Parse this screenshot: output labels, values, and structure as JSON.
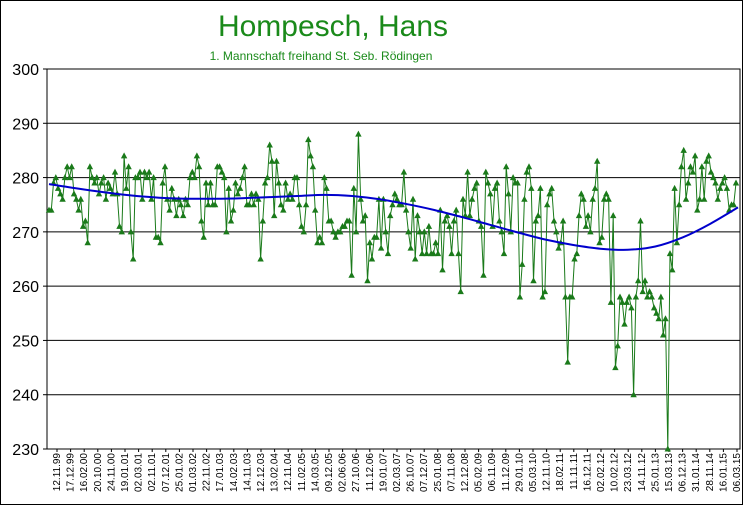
{
  "chart_data": {
    "type": "line",
    "title": "Hompesch, Hans",
    "subtitle": "1. Mannschaft freihand St. Seb. Rödingen",
    "ylim": [
      230,
      300
    ],
    "yticks": [
      230,
      240,
      250,
      260,
      270,
      280,
      290,
      300
    ],
    "grid": "horizontal",
    "legend": "none",
    "colors": {
      "series": "#1a7a1a",
      "trend": "#0000cc",
      "title": "#1a8a1a"
    },
    "xtick_labels": [
      "12.11.99",
      "17.12.99",
      "16.02.00",
      "20.10.00",
      "24.11.00",
      "19.01.01",
      "02.03.01",
      "02.11.01",
      "07.12.01",
      "25.01.02",
      "01.03.02",
      "22.11.02",
      "17.01.03",
      "14.02.03",
      "14.11.03",
      "12.12.03",
      "13.02.04",
      "12.11.04",
      "11.02.05",
      "14.03.05",
      "09.12.05",
      "02.06.06",
      "27.10.06",
      "11.12.06",
      "19.01.07",
      "02.03.07",
      "26.10.07",
      "07.12.07",
      "25.01.08",
      "07.11.08",
      "12.12.08",
      "05.02.09",
      "06.11.09",
      "11.12.09",
      "29.01.10",
      "05.03.10",
      "12.11.10",
      "18.02.11",
      "11.11.11",
      "16.12.11",
      "02.02.12",
      "10.02.12",
      "23.03.12",
      "14.11.12",
      "25.01.13",
      "15.03.13",
      "06.12.13",
      "31.01.14",
      "28.11.14",
      "16.01.15",
      "06.03.15"
    ],
    "series": [
      {
        "type": "line",
        "values": [
          274,
          274,
          279,
          280,
          278,
          277,
          276,
          280,
          282,
          280,
          282,
          277,
          276,
          274,
          276,
          271,
          272,
          268,
          282,
          280,
          279,
          280,
          277,
          279,
          280,
          276,
          279,
          278,
          277,
          281,
          277,
          271,
          270,
          284,
          278,
          282,
          270,
          265,
          280,
          280,
          281,
          276,
          281,
          280,
          281,
          276,
          280,
          269,
          269,
          268,
          279,
          282,
          276,
          274,
          278,
          276,
          273,
          276,
          275,
          273,
          276,
          275,
          280,
          281,
          280,
          284,
          282,
          272,
          269,
          279,
          275,
          279,
          275,
          275,
          282,
          282,
          281,
          280,
          270,
          278,
          272,
          274,
          279,
          277,
          278,
          280,
          282,
          275,
          275,
          277,
          275,
          277,
          276,
          265,
          272,
          279,
          280,
          286,
          283,
          273,
          283,
          279,
          275,
          274,
          279,
          276,
          277,
          276,
          280,
          280,
          275,
          271,
          270,
          275,
          287,
          284,
          282,
          274,
          268,
          269,
          268,
          280,
          278,
          272,
          272,
          270,
          269,
          270,
          270,
          271,
          271,
          272,
          272,
          262,
          278,
          270,
          288,
          276,
          272,
          273,
          261,
          268,
          265,
          269,
          269,
          276,
          267,
          276,
          270,
          266,
          273,
          275,
          277,
          276,
          275,
          275,
          281,
          274,
          270,
          267,
          276,
          265,
          273,
          270,
          266,
          270,
          266,
          271,
          266,
          266,
          268,
          266,
          274,
          263,
          272,
          273,
          271,
          266,
          272,
          274,
          266,
          259,
          276,
          273,
          281,
          273,
          276,
          278,
          279,
          272,
          271,
          262,
          281,
          279,
          277,
          271,
          278,
          279,
          272,
          270,
          266,
          282,
          277,
          270,
          280,
          279,
          279,
          258,
          264,
          276,
          281,
          282,
          278,
          261,
          272,
          273,
          278,
          258,
          259,
          275,
          277,
          278,
          272,
          270,
          267,
          268,
          272,
          258,
          246,
          258,
          258,
          265,
          266,
          273,
          277,
          276,
          271,
          273,
          270,
          276,
          278,
          283,
          268,
          269,
          276,
          277,
          276,
          257,
          273,
          245,
          249,
          258,
          257,
          253,
          257,
          258,
          256,
          240,
          258,
          261,
          272,
          259,
          261,
          258,
          259,
          258,
          256,
          255,
          254,
          258,
          251,
          254,
          230,
          266,
          263,
          278,
          268,
          275,
          282,
          285,
          276,
          279,
          282,
          281,
          284,
          274,
          276,
          282,
          276,
          283,
          284,
          281,
          280,
          279,
          276,
          278,
          279,
          280,
          278,
          274,
          275,
          275,
          279
        ]
      },
      {
        "type": "line",
        "values": [
          278.8,
          278.0,
          277.3,
          276.7,
          276.3,
          276.1,
          276.1,
          276.2,
          276.4,
          276.6,
          276.8,
          276.6,
          276.0,
          275.1,
          274.0,
          272.7,
          271.3,
          269.9,
          268.6,
          267.6,
          266.9,
          266.7,
          267.3,
          269.0,
          271.5,
          274.5
        ]
      }
    ]
  }
}
